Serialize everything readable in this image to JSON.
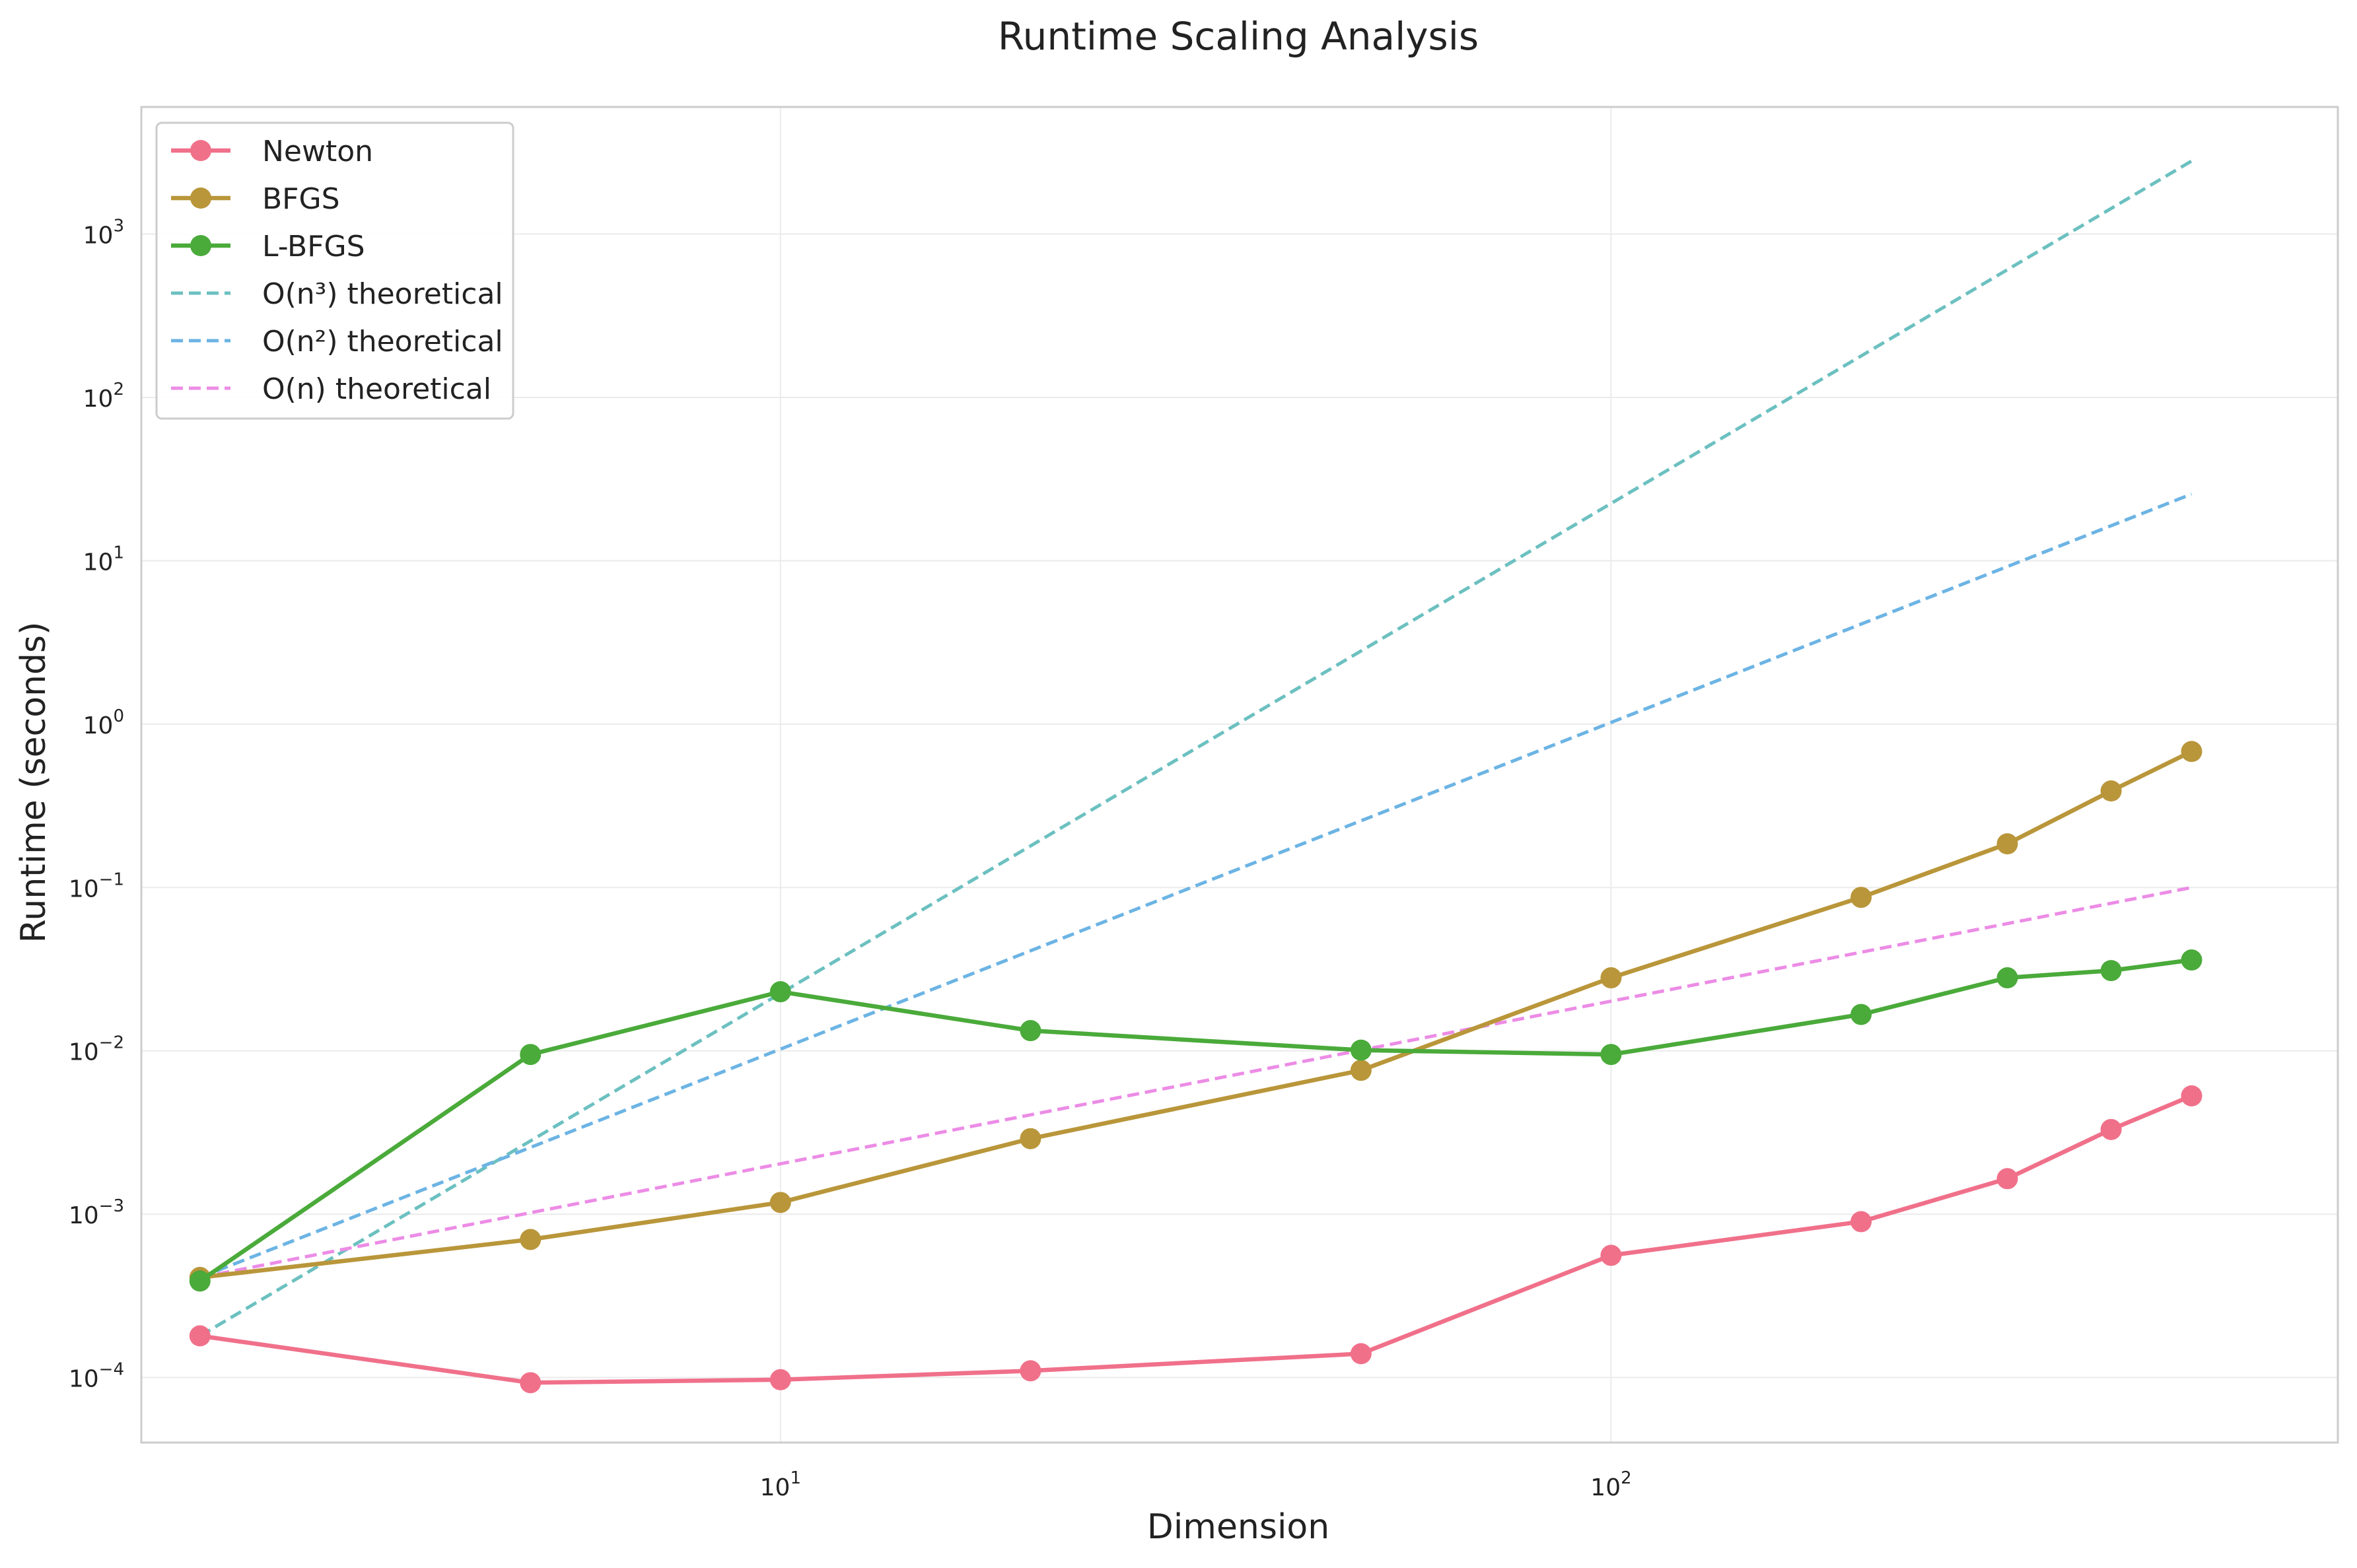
{
  "chart_data": {
    "type": "line",
    "title": "Runtime Scaling Analysis",
    "xlabel": "Dimension",
    "ylabel": "Runtime (seconds)",
    "xscale": "log",
    "yscale": "log",
    "xlim": [
      1.7,
      750
    ],
    "ylim": [
      4e-05,
      6000
    ],
    "x_ticks": [
      {
        "value": 10,
        "base": "10",
        "exp": "1"
      },
      {
        "value": 100,
        "base": "10",
        "exp": "2"
      }
    ],
    "y_ticks": [
      {
        "value": 0.0001,
        "base": "10",
        "exp": "−4"
      },
      {
        "value": 0.001,
        "base": "10",
        "exp": "−3"
      },
      {
        "value": 0.01,
        "base": "10",
        "exp": "−2"
      },
      {
        "value": 0.1,
        "base": "10",
        "exp": "−1"
      },
      {
        "value": 1,
        "base": "10",
        "exp": "0"
      },
      {
        "value": 10,
        "base": "10",
        "exp": "1"
      },
      {
        "value": 100,
        "base": "10",
        "exp": "2"
      },
      {
        "value": 1000,
        "base": "10",
        "exp": "3"
      }
    ],
    "grid": true,
    "legend_position": "top-left",
    "x": [
      2,
      5,
      10,
      20,
      50,
      100,
      200,
      300,
      400,
      500
    ],
    "series": [
      {
        "name": "Newton",
        "style": "solid-marker",
        "color": "#f0708a",
        "values": [
          0.00018,
          9.3e-05,
          9.7e-05,
          0.00011,
          0.00014,
          0.00056,
          0.0009,
          0.00165,
          0.0033,
          0.0053
        ]
      },
      {
        "name": "BFGS",
        "style": "solid-marker",
        "color": "#b9963a",
        "values": [
          0.00041,
          0.0007,
          0.00118,
          0.0029,
          0.0076,
          0.028,
          0.087,
          0.185,
          0.39,
          0.68
        ]
      },
      {
        "name": "L-BFGS",
        "style": "solid-marker",
        "color": "#4aaa3a",
        "values": [
          0.00039,
          0.0095,
          0.023,
          0.0133,
          0.0101,
          0.0095,
          0.0167,
          0.028,
          0.031,
          0.036
        ]
      },
      {
        "name": "O(n³) theoretical",
        "style": "dashed",
        "color": "#6cc0c0",
        "x": [
          2,
          500
        ],
        "values": [
          0.00018,
          2800
        ]
      },
      {
        "name": "O(n²) theoretical",
        "style": "dashed",
        "color": "#6cb4e4",
        "x": [
          2,
          500
        ],
        "values": [
          0.00041,
          25.6
        ]
      },
      {
        "name": "O(n) theoretical",
        "style": "dashed",
        "color": "#ec8ce6",
        "x": [
          2,
          500
        ],
        "values": [
          0.00041,
          0.1
        ]
      }
    ]
  }
}
